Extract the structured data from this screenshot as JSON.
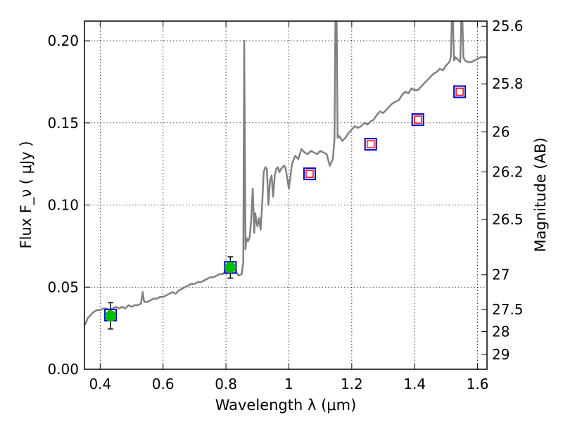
{
  "chart_data": {
    "type": "line",
    "xlabel": "Wavelength  λ (μm)",
    "ylabel": "Flux  F_ν  ( μJy )",
    "y2label": "Magnitude (AB)",
    "xlim": [
      0.35,
      1.63
    ],
    "ylim": [
      0.0,
      0.212
    ],
    "grid": true,
    "x_ticks": [
      0.4,
      0.6,
      0.8,
      1.0,
      1.2,
      1.4,
      1.6
    ],
    "x_tick_labels": [
      "0.4",
      "0.6",
      "0.8",
      "1",
      "1.2",
      "1.4",
      "1.6"
    ],
    "y_ticks": [
      0.0,
      0.05,
      0.1,
      0.15,
      0.2
    ],
    "y_tick_labels": [
      "0.00",
      "0.05",
      "0.10",
      "0.15",
      "0.20"
    ],
    "y2_ticks": [
      {
        "label": "25.6",
        "flux": 0.2089
      },
      {
        "label": "25.8",
        "flux": 0.1738
      },
      {
        "label": "26",
        "flux": 0.1445
      },
      {
        "label": "26.2",
        "flux": 0.1202
      },
      {
        "label": "26.5",
        "flux": 0.0912
      },
      {
        "label": "27",
        "flux": 0.0575
      },
      {
        "label": "27.5",
        "flux": 0.0363
      },
      {
        "label": "28",
        "flux": 0.0229
      },
      {
        "label": "29",
        "flux": 0.0091
      }
    ],
    "colors": {
      "spectrum": "#808080",
      "observed_marker": "#00bf00",
      "model_box": "#0000cc",
      "predicted_marker": "#ff0000"
    },
    "series": [
      {
        "type": "line",
        "x": [
          0.352,
          0.36,
          0.37,
          0.38,
          0.39,
          0.4,
          0.41,
          0.42,
          0.43,
          0.44,
          0.45,
          0.46,
          0.47,
          0.48,
          0.49,
          0.5,
          0.51,
          0.52,
          0.53,
          0.535,
          0.54,
          0.55,
          0.56,
          0.57,
          0.58,
          0.59,
          0.6,
          0.61,
          0.62,
          0.63,
          0.64,
          0.65,
          0.66,
          0.67,
          0.68,
          0.69,
          0.7,
          0.71,
          0.72,
          0.73,
          0.74,
          0.75,
          0.76,
          0.77,
          0.78,
          0.79,
          0.8,
          0.81,
          0.82,
          0.83,
          0.84,
          0.85,
          0.855,
          0.858,
          0.862,
          0.865,
          0.87,
          0.875,
          0.88,
          0.885,
          0.89,
          0.893,
          0.897,
          0.9,
          0.905,
          0.91,
          0.915,
          0.92,
          0.925,
          0.93,
          0.935,
          0.94,
          0.945,
          0.95,
          0.955,
          0.96,
          0.965,
          0.97,
          0.975,
          0.98,
          0.985,
          0.99,
          1.0,
          1.01,
          1.02,
          1.03,
          1.04,
          1.05,
          1.06,
          1.07,
          1.08,
          1.09,
          1.1,
          1.11,
          1.12,
          1.13,
          1.14,
          1.145,
          1.148,
          1.152,
          1.155,
          1.16,
          1.17,
          1.18,
          1.19,
          1.2,
          1.21,
          1.22,
          1.23,
          1.24,
          1.25,
          1.26,
          1.27,
          1.28,
          1.29,
          1.3,
          1.31,
          1.32,
          1.33,
          1.34,
          1.35,
          1.36,
          1.37,
          1.38,
          1.39,
          1.4,
          1.41,
          1.42,
          1.43,
          1.44,
          1.45,
          1.46,
          1.47,
          1.48,
          1.49,
          1.5,
          1.51,
          1.515,
          1.518,
          1.522,
          1.525,
          1.53,
          1.54,
          1.545,
          1.548,
          1.552,
          1.555,
          1.56,
          1.57,
          1.58,
          1.59,
          1.6,
          1.61,
          1.62,
          1.63
        ],
        "y": [
          0.027,
          0.031,
          0.033,
          0.035,
          0.036,
          0.036,
          0.037,
          0.037,
          0.036,
          0.037,
          0.038,
          0.037,
          0.038,
          0.037,
          0.039,
          0.038,
          0.039,
          0.039,
          0.04,
          0.047,
          0.041,
          0.041,
          0.042,
          0.043,
          0.043,
          0.044,
          0.044,
          0.045,
          0.046,
          0.047,
          0.046,
          0.048,
          0.049,
          0.05,
          0.051,
          0.052,
          0.052,
          0.053,
          0.053,
          0.054,
          0.055,
          0.056,
          0.056,
          0.057,
          0.058,
          0.058,
          0.06,
          0.059,
          0.062,
          0.06,
          0.057,
          0.058,
          0.065,
          0.2,
          0.073,
          0.08,
          0.078,
          0.08,
          0.09,
          0.11,
          0.083,
          0.095,
          0.09,
          0.087,
          0.092,
          0.085,
          0.1,
          0.12,
          0.123,
          0.122,
          0.1,
          0.115,
          0.118,
          0.105,
          0.118,
          0.122,
          0.123,
          0.12,
          0.122,
          0.123,
          0.124,
          0.122,
          0.11,
          0.125,
          0.13,
          0.128,
          0.134,
          0.132,
          0.131,
          0.133,
          0.132,
          0.131,
          0.133,
          0.132,
          0.131,
          0.124,
          0.128,
          0.14,
          0.212,
          0.212,
          0.141,
          0.142,
          0.139,
          0.141,
          0.144,
          0.146,
          0.148,
          0.147,
          0.148,
          0.15,
          0.149,
          0.151,
          0.152,
          0.155,
          0.157,
          0.156,
          0.158,
          0.16,
          0.162,
          0.163,
          0.164,
          0.167,
          0.169,
          0.168,
          0.171,
          0.17,
          0.17,
          0.172,
          0.174,
          0.176,
          0.178,
          0.18,
          0.181,
          0.183,
          0.182,
          0.185,
          0.187,
          0.19,
          0.212,
          0.212,
          0.188,
          0.19,
          0.188,
          0.187,
          0.212,
          0.212,
          0.19,
          0.188,
          0.187,
          0.187,
          0.188,
          0.189,
          0.19,
          0.19,
          0.19
        ]
      },
      {
        "type": "errorbar",
        "x": [
          0.433,
          0.814
        ],
        "y": [
          0.0325,
          0.062
        ],
        "yerr": [
          0.008,
          0.0065
        ]
      },
      {
        "type": "box",
        "x": [
          0.433,
          0.814,
          1.066,
          1.26,
          1.41,
          1.543
        ],
        "y": [
          0.033,
          0.062,
          0.119,
          0.137,
          0.152,
          0.169
        ]
      },
      {
        "type": "predicted",
        "x": [
          1.066,
          1.26,
          1.41,
          1.543
        ],
        "y": [
          0.119,
          0.137,
          0.152,
          0.169
        ]
      }
    ]
  }
}
